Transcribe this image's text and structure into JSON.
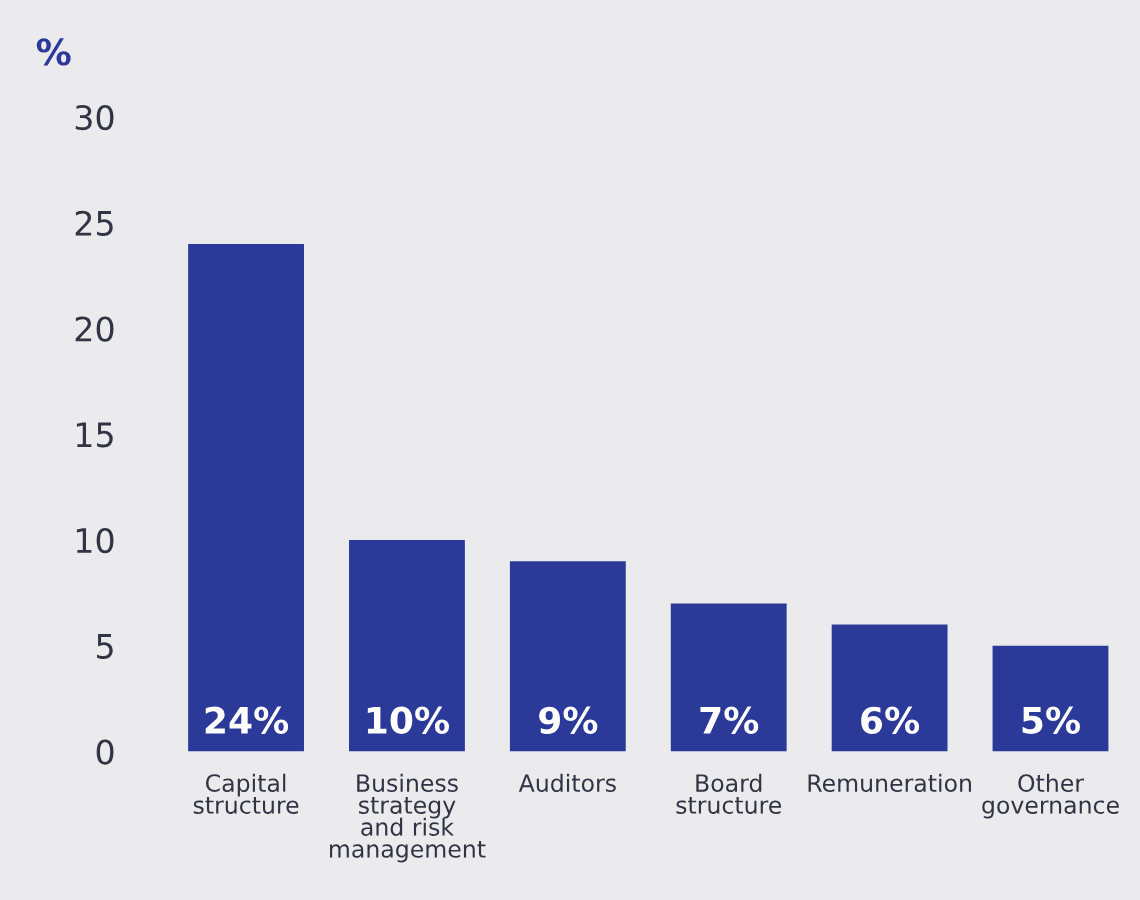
{
  "chart_data": {
    "type": "bar",
    "ylabel": "%",
    "categories": [
      "Capital\nstructure",
      "Business\nstrategy\nand risk\nmanagement",
      "Auditors",
      "Board\nstructure",
      "Remuneration",
      "Other\ngovernance"
    ],
    "values": [
      24,
      10,
      9,
      7,
      6,
      5
    ],
    "value_labels": [
      "24%",
      "10%",
      "9%",
      "7%",
      "6%",
      "5%"
    ],
    "color": "#2b3a98",
    "ylim": [
      0,
      30
    ],
    "yticks": [
      0,
      5,
      10,
      15,
      20,
      25,
      30
    ],
    "grid": false
  }
}
